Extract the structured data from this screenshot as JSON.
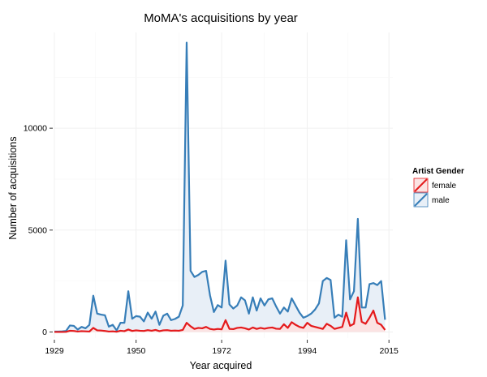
{
  "chart_data": {
    "type": "line",
    "title": "MoMA's acquisitions by year",
    "xlabel": "Year acquired",
    "ylabel": "Number of acquisitions",
    "xlim": [
      1929,
      2016
    ],
    "ylim": [
      -300,
      14700
    ],
    "x_ticks": [
      1929,
      1950,
      1972,
      1994,
      2015
    ],
    "y_ticks": [
      0,
      5000,
      10000
    ],
    "y_tick_labels": [
      "0",
      "5000",
      "10000"
    ],
    "grid": true,
    "legend": {
      "title": "Artist Gender",
      "position": "right"
    },
    "series": [
      {
        "name": "male",
        "color": "#377eb8",
        "fill": "#e8eff7",
        "points": [
          [
            1929,
            20
          ],
          [
            1930,
            20
          ],
          [
            1931,
            30
          ],
          [
            1932,
            50
          ],
          [
            1933,
            320
          ],
          [
            1934,
            300
          ],
          [
            1935,
            120
          ],
          [
            1936,
            250
          ],
          [
            1937,
            180
          ],
          [
            1938,
            350
          ],
          [
            1939,
            1780
          ],
          [
            1940,
            900
          ],
          [
            1941,
            850
          ],
          [
            1942,
            820
          ],
          [
            1943,
            260
          ],
          [
            1944,
            350
          ],
          [
            1945,
            80
          ],
          [
            1946,
            450
          ],
          [
            1947,
            450
          ],
          [
            1948,
            2000
          ],
          [
            1949,
            650
          ],
          [
            1950,
            780
          ],
          [
            1951,
            750
          ],
          [
            1952,
            520
          ],
          [
            1953,
            950
          ],
          [
            1954,
            650
          ],
          [
            1955,
            1000
          ],
          [
            1956,
            350
          ],
          [
            1957,
            800
          ],
          [
            1958,
            900
          ],
          [
            1959,
            580
          ],
          [
            1960,
            640
          ],
          [
            1961,
            750
          ],
          [
            1962,
            1300
          ],
          [
            1963,
            14200
          ],
          [
            1964,
            3000
          ],
          [
            1965,
            2700
          ],
          [
            1966,
            2800
          ],
          [
            1967,
            2950
          ],
          [
            1968,
            3000
          ],
          [
            1969,
            1800
          ],
          [
            1970,
            980
          ],
          [
            1971,
            1320
          ],
          [
            1972,
            1200
          ],
          [
            1973,
            3500
          ],
          [
            1974,
            1350
          ],
          [
            1975,
            1150
          ],
          [
            1976,
            1300
          ],
          [
            1977,
            1700
          ],
          [
            1978,
            1550
          ],
          [
            1979,
            900
          ],
          [
            1980,
            1700
          ],
          [
            1981,
            1050
          ],
          [
            1982,
            1650
          ],
          [
            1983,
            1300
          ],
          [
            1984,
            1600
          ],
          [
            1985,
            1650
          ],
          [
            1986,
            1250
          ],
          [
            1987,
            900
          ],
          [
            1988,
            1200
          ],
          [
            1989,
            1000
          ],
          [
            1990,
            1650
          ],
          [
            1991,
            1300
          ],
          [
            1992,
            950
          ],
          [
            1993,
            700
          ],
          [
            1994,
            780
          ],
          [
            1995,
            900
          ],
          [
            1996,
            1100
          ],
          [
            1997,
            1400
          ],
          [
            1998,
            2500
          ],
          [
            1999,
            2650
          ],
          [
            2000,
            2550
          ],
          [
            2001,
            700
          ],
          [
            2002,
            850
          ],
          [
            2003,
            750
          ],
          [
            2004,
            4500
          ],
          [
            2005,
            1600
          ],
          [
            2006,
            2000
          ],
          [
            2007,
            5550
          ],
          [
            2008,
            1200
          ],
          [
            2009,
            1200
          ],
          [
            2010,
            2350
          ],
          [
            2011,
            2400
          ],
          [
            2012,
            2300
          ],
          [
            2013,
            2500
          ],
          [
            2014,
            600
          ]
        ]
      },
      {
        "name": "female",
        "color": "#e41a1c",
        "fill": "#fbe3e3",
        "points": [
          [
            1929,
            0
          ],
          [
            1930,
            0
          ],
          [
            1931,
            0
          ],
          [
            1932,
            5
          ],
          [
            1933,
            60
          ],
          [
            1934,
            50
          ],
          [
            1935,
            20
          ],
          [
            1936,
            40
          ],
          [
            1937,
            30
          ],
          [
            1938,
            20
          ],
          [
            1939,
            200
          ],
          [
            1940,
            80
          ],
          [
            1941,
            70
          ],
          [
            1942,
            50
          ],
          [
            1943,
            20
          ],
          [
            1944,
            30
          ],
          [
            1945,
            10
          ],
          [
            1946,
            60
          ],
          [
            1947,
            40
          ],
          [
            1948,
            120
          ],
          [
            1949,
            50
          ],
          [
            1950,
            80
          ],
          [
            1951,
            60
          ],
          [
            1952,
            50
          ],
          [
            1953,
            90
          ],
          [
            1954,
            60
          ],
          [
            1955,
            100
          ],
          [
            1956,
            40
          ],
          [
            1957,
            80
          ],
          [
            1958,
            90
          ],
          [
            1959,
            60
          ],
          [
            1960,
            70
          ],
          [
            1961,
            60
          ],
          [
            1962,
            100
          ],
          [
            1963,
            450
          ],
          [
            1964,
            280
          ],
          [
            1965,
            150
          ],
          [
            1966,
            200
          ],
          [
            1967,
            180
          ],
          [
            1968,
            250
          ],
          [
            1969,
            150
          ],
          [
            1970,
            120
          ],
          [
            1971,
            150
          ],
          [
            1972,
            130
          ],
          [
            1973,
            580
          ],
          [
            1974,
            150
          ],
          [
            1975,
            140
          ],
          [
            1976,
            200
          ],
          [
            1977,
            220
          ],
          [
            1978,
            180
          ],
          [
            1979,
            120
          ],
          [
            1980,
            220
          ],
          [
            1981,
            150
          ],
          [
            1982,
            200
          ],
          [
            1983,
            160
          ],
          [
            1984,
            200
          ],
          [
            1985,
            220
          ],
          [
            1986,
            160
          ],
          [
            1987,
            150
          ],
          [
            1988,
            380
          ],
          [
            1989,
            200
          ],
          [
            1990,
            480
          ],
          [
            1991,
            350
          ],
          [
            1992,
            250
          ],
          [
            1993,
            200
          ],
          [
            1994,
            450
          ],
          [
            1995,
            300
          ],
          [
            1996,
            250
          ],
          [
            1997,
            200
          ],
          [
            1998,
            150
          ],
          [
            1999,
            400
          ],
          [
            2000,
            300
          ],
          [
            2001,
            150
          ],
          [
            2002,
            200
          ],
          [
            2003,
            250
          ],
          [
            2004,
            950
          ],
          [
            2005,
            300
          ],
          [
            2006,
            400
          ],
          [
            2007,
            1700
          ],
          [
            2008,
            500
          ],
          [
            2009,
            400
          ],
          [
            2010,
            700
          ],
          [
            2011,
            1050
          ],
          [
            2012,
            450
          ],
          [
            2013,
            350
          ],
          [
            2014,
            100
          ]
        ]
      }
    ]
  }
}
